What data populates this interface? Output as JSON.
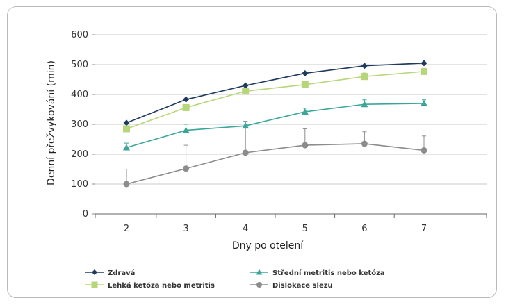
{
  "chart_data": {
    "type": "line",
    "xlabel": "Dny po otelení",
    "ylabel": "Denní přežvykování (min)",
    "x": [
      2,
      3,
      4,
      5,
      6,
      7
    ],
    "ylim": [
      0,
      600
    ],
    "yticks": [
      0,
      100,
      200,
      300,
      400,
      500,
      600
    ],
    "grid": "horizontal",
    "legend_position": "bottom",
    "series": [
      {
        "name": "Zdravá",
        "values": [
          305,
          383,
          430,
          471,
          496,
          505
        ],
        "errors": [
          0,
          0,
          0,
          0,
          0,
          0
        ],
        "color": "#1f3a5f",
        "marker": "diamond"
      },
      {
        "name": "Lehká ketóza nebo metritis",
        "values": [
          285,
          356,
          411,
          433,
          460,
          477
        ],
        "errors": [
          0,
          0,
          0,
          0,
          12,
          10
        ],
        "color": "#b7d67a",
        "marker": "square"
      },
      {
        "name": "Střední metritis nebo ketóza",
        "values": [
          222,
          280,
          295,
          342,
          367,
          370
        ],
        "errors": [
          15,
          20,
          15,
          12,
          15,
          12
        ],
        "color": "#3aa69a",
        "marker": "triangle"
      },
      {
        "name": "Dislokace slezu",
        "values": [
          100,
          152,
          205,
          230,
          235,
          213
        ],
        "errors": [
          50,
          78,
          105,
          55,
          40,
          48
        ],
        "color": "#8c8c8c",
        "marker": "circle"
      }
    ]
  }
}
